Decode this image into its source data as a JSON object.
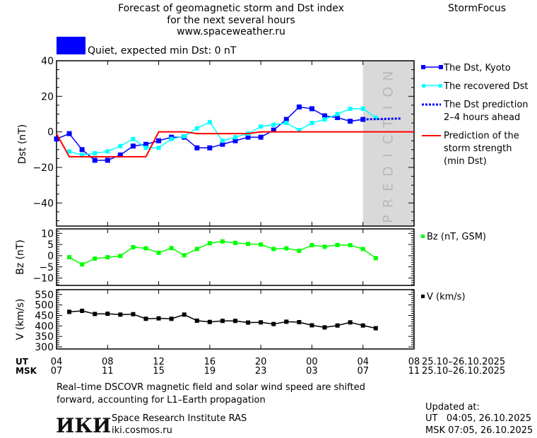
{
  "header": {
    "title_line1": "Forecast of geomagnetic storm and Dst index",
    "title_line2": "for the next several hours",
    "url": "www.spaceweather.ru",
    "brand": "StormFocus",
    "status_text": "Quiet, expected min Dst: 0 nT",
    "status_color": "#0000ff"
  },
  "prediction_label": "PREDICTION",
  "legend": {
    "dst_kyoto": "The Dst, Kyoto",
    "recovered": "The recovered Dst",
    "prediction_1": "The Dst prediction",
    "prediction_2": "2–4 hours ahead",
    "storm_1": "Prediction of the",
    "storm_2": "storm strength",
    "storm_3": "(min Dst)",
    "bz": "Bz (nT, GSM)",
    "v": "V (km/s)"
  },
  "x_axis": {
    "ut_label": "UT",
    "msk_label": "MSK",
    "ut_ticks": [
      "04",
      "08",
      "12",
      "16",
      "20",
      "00",
      "04",
      "08"
    ],
    "msk_ticks": [
      "07",
      "11",
      "15",
      "19",
      "23",
      "03",
      "07",
      "11"
    ],
    "ut_dates": "25.10–26.10.2025",
    "msk_dates": "25.10–26.10.2025"
  },
  "footer": {
    "note_line1": "Real–time DSCOVR magnetic field and solar wind speed are shifted",
    "note_line2": "forward, accounting for L1–Earth propagation",
    "institute": "Space Research Institute RAS",
    "institute_url": "iki.cosmos.ru",
    "logo_text": "ИКИ",
    "updated_label": "Updated at:",
    "updated_ut": "UT   04:05, 26.10.2025",
    "updated_msk": "MSK 07:05, 26.10.2025"
  },
  "chart_data": [
    {
      "type": "line",
      "ylabel": "Dst (nT)",
      "ylim": [
        -53,
        40
      ],
      "yticks": [
        40,
        20,
        0,
        -20,
        -40
      ],
      "xlim": [
        "2025-10-25 04:00",
        "2025-10-26 08:00"
      ],
      "prediction_region": [
        "2025-10-26 04:00",
        "2025-10-26 08:00"
      ],
      "times": [
        "2025-10-25 04:00",
        "2025-10-25 05:00",
        "2025-10-25 06:00",
        "2025-10-25 07:00",
        "2025-10-25 08:00",
        "2025-10-25 09:00",
        "2025-10-25 10:00",
        "2025-10-25 11:00",
        "2025-10-25 12:00",
        "2025-10-25 13:00",
        "2025-10-25 14:00",
        "2025-10-25 15:00",
        "2025-10-25 16:00",
        "2025-10-25 17:00",
        "2025-10-25 18:00",
        "2025-10-25 19:00",
        "2025-10-25 20:00",
        "2025-10-25 21:00",
        "2025-10-25 22:00",
        "2025-10-25 23:00",
        "2025-10-26 00:00",
        "2025-10-26 01:00",
        "2025-10-26 02:00",
        "2025-10-26 03:00",
        "2025-10-26 04:00",
        "2025-10-26 05:00"
      ],
      "series": [
        {
          "name": "The Dst, Kyoto",
          "color": "#0000ff",
          "values": [
            -4,
            -1,
            -10,
            -16,
            -16,
            -13,
            -8,
            -7,
            -5,
            -3,
            -3,
            -9,
            -9,
            -7,
            -5,
            -3,
            -3,
            1,
            7,
            14,
            13,
            9,
            8,
            6,
            7,
            null
          ]
        },
        {
          "name": "The recovered Dst",
          "color": "#00ffff",
          "values": [
            null,
            -11,
            -13,
            -12,
            -11,
            -8,
            -4,
            -9,
            -9,
            -4,
            -2.5,
            2,
            5.5,
            -5,
            -3,
            -1,
            3,
            4,
            5,
            1,
            5,
            7,
            10,
            13,
            13,
            8
          ]
        },
        {
          "name": "The Dst prediction 2–4 hours ahead",
          "color": "#0000ff",
          "style": "dotted",
          "points": [
            [
              "2025-10-26 04:00",
              7
            ],
            [
              "2025-10-26 07:00",
              7.5
            ]
          ]
        },
        {
          "name": "Prediction of the storm strength (min Dst)",
          "color": "#ff0000",
          "points": [
            [
              "2025-10-25 04:00",
              -1
            ],
            [
              "2025-10-25 05:00",
              -14
            ],
            [
              "2025-10-25 11:00",
              -14
            ],
            [
              "2025-10-25 12:00",
              0
            ],
            [
              "2025-10-25 14:00",
              0
            ],
            [
              "2025-10-25 15:00",
              -1
            ],
            [
              "2025-10-25 19:00",
              -1
            ],
            [
              "2025-10-25 20:00",
              0
            ],
            [
              "2025-10-26 08:00",
              0
            ]
          ]
        }
      ]
    },
    {
      "type": "line",
      "ylabel": "Bz (nT)",
      "ylim": [
        -13.3,
        12
      ],
      "yticks": [
        10,
        5,
        0,
        -5,
        -10
      ],
      "series": [
        {
          "name": "Bz (nT, GSM)",
          "color": "#00ff00",
          "values": [
            null,
            -0.7,
            -3.9,
            -1.3,
            -0.7,
            -0.1,
            3.8,
            3.3,
            1.3,
            3.4,
            0.2,
            3.0,
            5.6,
            6.4,
            5.7,
            5.3,
            5.0,
            3.0,
            3.3,
            2.2,
            4.7,
            4.0,
            4.8,
            4.7,
            3.0,
            -1.1
          ]
        }
      ]
    },
    {
      "type": "line",
      "ylabel": "V (km/s)",
      "ylim": [
        290,
        573
      ],
      "yticks": [
        550,
        500,
        450,
        400,
        350,
        300
      ],
      "series": [
        {
          "name": "V (km/s)",
          "color": "#000000",
          "values": [
            null,
            467,
            472,
            457,
            458,
            454,
            456,
            434,
            436,
            434,
            454,
            425,
            419,
            424,
            424,
            416,
            417,
            409,
            420,
            418,
            403,
            393,
            402,
            417,
            402,
            389
          ]
        }
      ]
    }
  ]
}
